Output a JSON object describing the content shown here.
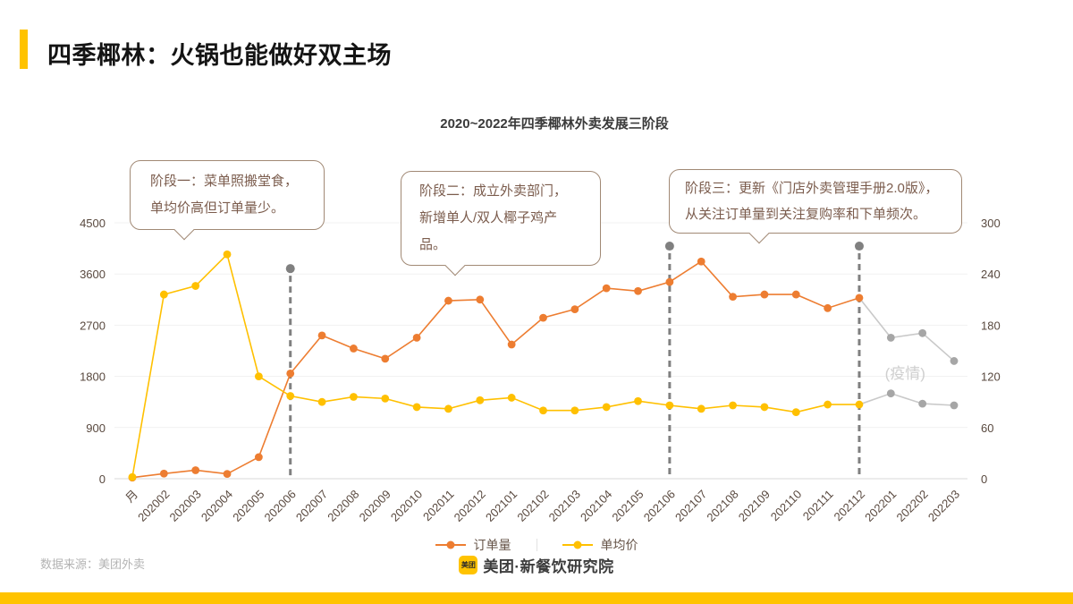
{
  "slide": {
    "title": "四季椰林：火锅也能做好双主场",
    "accent_color": "#FFC300",
    "footer_source": "数据来源：美团外卖",
    "logo_badge": "美团",
    "logo_text": "美团·新餐饮研究院"
  },
  "callouts": [
    {
      "line1": "阶段一：菜单照搬堂食，",
      "line2": "单均价高但订单量少。"
    },
    {
      "line1": "阶段二：成立外卖部门，",
      "line2": "新增单人/双人椰子鸡产品。"
    },
    {
      "line1": "阶段三：更新《门店外卖管理手册2.0版》，",
      "line2": "从关注订单量到关注复购率和下单频次。"
    }
  ],
  "legend": [
    {
      "label": "订单量",
      "color": "#ED7D31"
    },
    {
      "label": "单均价",
      "color": "#FFC000"
    }
  ],
  "chart_data": {
    "type": "line",
    "title": "2020~2022年四季椰林外卖发展三阶段",
    "categories": [
      "月",
      "202002",
      "202003",
      "202004",
      "202005",
      "202006",
      "202007",
      "202008",
      "202009",
      "202010",
      "202011",
      "202012",
      "202101",
      "202102",
      "202103",
      "202104",
      "202105",
      "202106",
      "202107",
      "202108",
      "202109",
      "202110",
      "202111",
      "202112",
      "202201",
      "202202",
      "202203"
    ],
    "series": [
      {
        "name": "订单量",
        "axis": "left",
        "color": "#ED7D31",
        "gray_from": 23,
        "values": [
          20,
          90,
          150,
          85,
          380,
          1850,
          2520,
          2290,
          2110,
          2480,
          3130,
          3150,
          2360,
          2830,
          2980,
          3350,
          3300,
          3460,
          3820,
          3200,
          3240,
          3240,
          3000,
          3180,
          2480,
          2560,
          2070
        ]
      },
      {
        "name": "单均价",
        "axis": "right",
        "color": "#FFC000",
        "gray_from": 23,
        "values": [
          2,
          216,
          226,
          263,
          120,
          97,
          90,
          96,
          94,
          84,
          82,
          92,
          95,
          80,
          80,
          84,
          91,
          86,
          82,
          86,
          84,
          78,
          87,
          87,
          100,
          88,
          86
        ]
      }
    ],
    "left_axis": {
      "min": 0,
      "max": 4500,
      "ticks": [
        0,
        900,
        1800,
        2700,
        3600,
        4500
      ]
    },
    "right_axis": {
      "min": 0,
      "max": 300,
      "ticks": [
        0,
        60,
        120,
        180,
        240,
        300
      ]
    },
    "milestones": [
      {
        "category": "202006",
        "dot_value": 3695
      },
      {
        "category": "202106",
        "dot_value": 4090
      },
      {
        "category": "202112",
        "dot_value": 4090
      }
    ],
    "annotation": {
      "text": "(疫情)",
      "category": "202201"
    },
    "colors": {
      "grid": "#F1F1F1",
      "axis_line": "#D9D9D9",
      "axis_text": "#59493F",
      "dash": "#808080",
      "gray_line": "#C9C9C9",
      "gray_marker": "#A6A6A6",
      "annotation": "#CFCFCF"
    },
    "legend_position": "bottom",
    "grid": true
  }
}
